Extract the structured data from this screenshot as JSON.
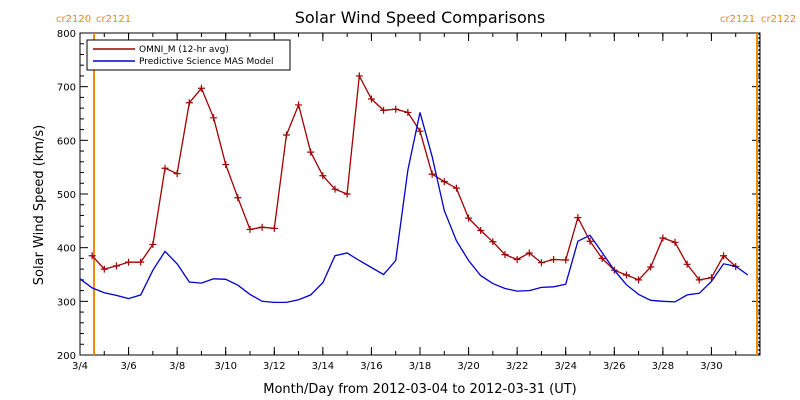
{
  "chart_data": {
    "type": "line",
    "title": "Solar Wind Speed Comparisons",
    "xlabel": "Month/Day from 2012-03-04 to 2012-03-31 (UT)",
    "ylabel": "Solar Wind Speed (km/s)",
    "xlim": [
      "2012-03-04",
      "2012-03-31"
    ],
    "ylim": [
      200,
      800
    ],
    "x_tick_labels": [
      "3/4",
      "3/6",
      "3/8",
      "3/10",
      "3/12",
      "3/14",
      "3/16",
      "3/18",
      "3/20",
      "3/22",
      "3/24",
      "3/26",
      "3/28",
      "3/30"
    ],
    "y_tick_labels": [
      "200",
      "300",
      "400",
      "500",
      "600",
      "700",
      "800"
    ],
    "legend_position": "top-left",
    "cr_markers": [
      {
        "label": "cr2120",
        "side": "left"
      },
      {
        "label": "cr2121",
        "side": "left"
      },
      {
        "label": "cr2121",
        "side": "right"
      },
      {
        "label": "cr2122",
        "side": "right"
      }
    ],
    "series": [
      {
        "name": "OMNI_M (12-hr avg)",
        "color": "#a00000",
        "marker": "plus",
        "x": [
          "2012-03-04T12",
          "2012-03-05T00",
          "2012-03-05T12",
          "2012-03-06T00",
          "2012-03-06T12",
          "2012-03-07T00",
          "2012-03-07T12",
          "2012-03-08T00",
          "2012-03-08T12",
          "2012-03-09T00",
          "2012-03-09T12",
          "2012-03-10T00",
          "2012-03-10T12",
          "2012-03-11T00",
          "2012-03-11T12",
          "2012-03-12T00",
          "2012-03-12T12",
          "2012-03-13T00",
          "2012-03-13T12",
          "2012-03-14T00",
          "2012-03-14T12",
          "2012-03-15T00",
          "2012-03-15T12",
          "2012-03-16T00",
          "2012-03-16T12",
          "2012-03-17T00",
          "2012-03-17T12",
          "2012-03-18T00",
          "2012-03-18T12",
          "2012-03-19T00",
          "2012-03-19T12",
          "2012-03-20T00",
          "2012-03-20T12",
          "2012-03-21T00",
          "2012-03-21T12",
          "2012-03-22T00",
          "2012-03-22T12",
          "2012-03-23T00",
          "2012-03-23T12",
          "2012-03-24T00",
          "2012-03-24T12",
          "2012-03-25T00",
          "2012-03-25T12",
          "2012-03-26T00",
          "2012-03-26T12",
          "2012-03-27T00",
          "2012-03-27T12",
          "2012-03-28T00",
          "2012-03-28T12",
          "2012-03-29T00",
          "2012-03-29T12",
          "2012-03-30T00",
          "2012-03-30T12",
          "2012-03-31T00"
        ],
        "y": [
          385,
          360,
          366,
          373,
          373,
          406,
          548,
          538,
          670,
          697,
          642,
          555,
          493,
          434,
          438,
          436,
          610,
          666,
          578,
          534,
          509,
          500,
          720,
          677,
          656,
          658,
          652,
          617,
          537,
          523,
          511,
          455,
          432,
          411,
          387,
          378,
          390,
          372,
          378,
          377,
          456,
          412,
          380,
          358,
          349,
          340,
          364,
          418,
          410,
          369,
          340,
          344,
          385,
          365
        ]
      },
      {
        "name": "Predictive Science MAS Model",
        "color": "#0000cc",
        "marker": "none",
        "x": [
          "2012-03-04T00",
          "2012-03-04T12",
          "2012-03-05T00",
          "2012-03-05T12",
          "2012-03-06T00",
          "2012-03-06T12",
          "2012-03-07T00",
          "2012-03-07T12",
          "2012-03-08T00",
          "2012-03-08T12",
          "2012-03-09T00",
          "2012-03-09T12",
          "2012-03-10T00",
          "2012-03-10T12",
          "2012-03-11T00",
          "2012-03-11T12",
          "2012-03-12T00",
          "2012-03-12T12",
          "2012-03-13T00",
          "2012-03-13T12",
          "2012-03-14T00",
          "2012-03-14T12",
          "2012-03-15T00",
          "2012-03-15T12",
          "2012-03-16T00",
          "2012-03-16T12",
          "2012-03-17T00",
          "2012-03-17T12",
          "2012-03-18T00",
          "2012-03-18T12",
          "2012-03-19T00",
          "2012-03-19T12",
          "2012-03-20T00",
          "2012-03-20T12",
          "2012-03-21T00",
          "2012-03-21T12",
          "2012-03-22T00",
          "2012-03-22T12",
          "2012-03-23T00",
          "2012-03-23T12",
          "2012-03-24T00",
          "2012-03-24T12",
          "2012-03-25T00",
          "2012-03-25T12",
          "2012-03-26T00",
          "2012-03-26T12",
          "2012-03-27T00",
          "2012-03-27T12",
          "2012-03-28T00",
          "2012-03-28T12",
          "2012-03-29T00",
          "2012-03-29T12",
          "2012-03-30T00",
          "2012-03-30T12",
          "2012-03-31T00",
          "2012-03-31T12"
        ],
        "y": [
          342,
          325,
          316,
          311,
          305,
          312,
          358,
          393,
          370,
          336,
          334,
          342,
          341,
          330,
          313,
          300,
          298,
          298,
          303,
          312,
          335,
          385,
          390,
          376,
          363,
          350,
          376,
          545,
          652,
          570,
          469,
          413,
          376,
          348,
          333,
          324,
          319,
          320,
          326,
          327,
          332,
          412,
          423,
          391,
          358,
          331,
          313,
          302,
          300,
          299,
          312,
          315,
          337,
          370,
          365,
          349
        ]
      }
    ]
  }
}
